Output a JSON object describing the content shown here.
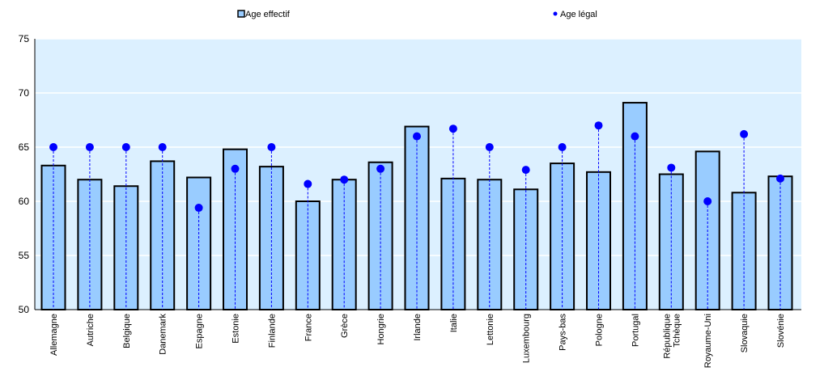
{
  "chart_data": {
    "type": "bar",
    "categories": [
      "Allemagne",
      "Autriche",
      "Belgique",
      "Danemark",
      "Espagne",
      "Estonie",
      "Finlande",
      "France",
      "Grèce",
      "Hongrie",
      "Irlande",
      "Italie",
      "Lettonie",
      "Luxembourg",
      "Pays-bas",
      "Pologne",
      "Portugal",
      "République Tchèque",
      "Royaume-Uni",
      "Slovaquie",
      "Slovénie"
    ],
    "series": [
      {
        "name": "Age effectif",
        "kind": "bar",
        "color": "#99ccff",
        "values": [
          63.3,
          62.0,
          61.4,
          63.7,
          62.2,
          64.8,
          63.2,
          60.0,
          62.0,
          63.6,
          66.9,
          62.1,
          62.0,
          61.1,
          63.5,
          62.7,
          69.1,
          62.5,
          64.6,
          60.8,
          62.3
        ]
      },
      {
        "name": "Age légal",
        "kind": "point",
        "color": "#0000ff",
        "values": [
          65.0,
          65.0,
          65.0,
          65.0,
          59.4,
          63.0,
          65.0,
          61.6,
          62.0,
          63.0,
          66.0,
          66.7,
          65.0,
          62.9,
          65.0,
          67.0,
          66.0,
          63.1,
          60.0,
          66.2,
          62.1
        ]
      }
    ],
    "ylim": [
      50,
      75
    ],
    "yticks": [
      "50",
      "55",
      "60",
      "65",
      "70",
      "75"
    ],
    "grid": true,
    "legend": "top",
    "plot_background": "#dcf0ff"
  }
}
